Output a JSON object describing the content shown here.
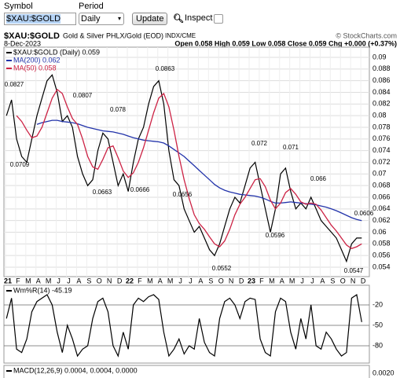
{
  "toolbar": {
    "symbol_label": "Symbol",
    "symbol_value": "$XAU:$GOLD",
    "period_label": "Period",
    "period_value": "Daily",
    "update": "Update",
    "inspect": "Inspect"
  },
  "header": {
    "symbol": "$XAU:$GOLD",
    "description": "Gold & Silver PHLX/Gold (EOD)",
    "exchange": "INDX/CME",
    "copyright": "© StockCharts.com",
    "date": "8-Dec-2023",
    "quote": "Open 0.058 High 0.059 Low 0.058 Close 0.059 Chg +0.000 (+0.37%)"
  },
  "chart_data": [
    {
      "type": "line",
      "x_labels": [
        "21",
        "F",
        "M",
        "A",
        "M",
        "J",
        "J",
        "A",
        "S",
        "O",
        "N",
        "D",
        "22",
        "F",
        "M",
        "A",
        "M",
        "J",
        "J",
        "A",
        "S",
        "O",
        "N",
        "D",
        "23",
        "F",
        "M",
        "A",
        "M",
        "J",
        "J",
        "A",
        "S",
        "O",
        "N",
        "D"
      ],
      "ylim": [
        0.053,
        0.0915
      ],
      "yticks": [
        0.054,
        0.056,
        0.058,
        0.06,
        0.062,
        0.064,
        0.066,
        0.068,
        0.07,
        0.072,
        0.074,
        0.076,
        0.078,
        0.08,
        0.082,
        0.084,
        0.086,
        0.088,
        0.09
      ],
      "grid": true,
      "series": [
        {
          "name": "$XAU:$GOLD (Daily) 0.059",
          "color": "#000000",
          "values": [
            0.08,
            0.0827,
            0.076,
            0.073,
            0.072,
            0.076,
            0.08,
            0.083,
            0.086,
            0.087,
            0.084,
            0.079,
            0.08,
            0.078,
            0.073,
            0.07,
            0.068,
            0.069,
            0.074,
            0.077,
            0.076,
            0.072,
            0.068,
            0.07,
            0.067,
            0.072,
            0.076,
            0.078,
            0.082,
            0.085,
            0.086,
            0.082,
            0.074,
            0.069,
            0.068,
            0.064,
            0.062,
            0.06,
            0.061,
            0.059,
            0.057,
            0.056,
            0.058,
            0.061,
            0.064,
            0.066,
            0.065,
            0.068,
            0.071,
            0.072,
            0.068,
            0.064,
            0.06,
            0.064,
            0.07,
            0.071,
            0.067,
            0.064,
            0.065,
            0.064,
            0.066,
            0.064,
            0.062,
            0.061,
            0.06,
            0.059,
            0.057,
            0.055,
            0.058,
            0.059,
            0.059
          ]
        },
        {
          "name": "MA(200) 0.062",
          "color": "#2233aa",
          "values": [
            null,
            null,
            null,
            null,
            null,
            null,
            0.0785,
            0.0788,
            0.079,
            0.0792,
            0.0792,
            0.079,
            0.0789,
            0.0788,
            0.0786,
            0.0783,
            0.078,
            0.0778,
            0.0776,
            0.0774,
            0.0773,
            0.0772,
            0.077,
            0.0768,
            0.0765,
            0.0762,
            0.076,
            0.0758,
            0.0757,
            0.0756,
            0.0755,
            0.0753,
            0.0748,
            0.0742,
            0.0736,
            0.073,
            0.0722,
            0.0714,
            0.0706,
            0.0698,
            0.069,
            0.0682,
            0.0676,
            0.0672,
            0.0669,
            0.0667,
            0.0665,
            0.0664,
            0.0663,
            0.0662,
            0.066,
            0.0657,
            0.0653,
            0.065,
            0.065,
            0.0651,
            0.0652,
            0.0651,
            0.065,
            0.0649,
            0.0648,
            0.0647,
            0.0645,
            0.0643,
            0.064,
            0.0637,
            0.0633,
            0.0629,
            0.0625,
            0.0622,
            0.062
          ]
        },
        {
          "name": "MA(50) 0.058",
          "color": "#cc2244",
          "values": [
            null,
            null,
            0.08,
            0.079,
            0.0775,
            0.0762,
            0.0765,
            0.078,
            0.0805,
            0.083,
            0.0845,
            0.0838,
            0.0815,
            0.0795,
            0.0785,
            0.076,
            0.073,
            0.0712,
            0.0708,
            0.0725,
            0.0745,
            0.0748,
            0.0728,
            0.0705,
            0.0694,
            0.0702,
            0.072,
            0.0745,
            0.0775,
            0.0805,
            0.083,
            0.0838,
            0.0815,
            0.0775,
            0.073,
            0.069,
            0.0658,
            0.063,
            0.0615,
            0.0605,
            0.0592,
            0.058,
            0.0575,
            0.0585,
            0.0605,
            0.063,
            0.0648,
            0.066,
            0.0675,
            0.069,
            0.0692,
            0.0678,
            0.0655,
            0.064,
            0.065,
            0.0668,
            0.0675,
            0.0665,
            0.0652,
            0.0648,
            0.065,
            0.0648,
            0.0638,
            0.0625,
            0.0612,
            0.0602,
            0.059,
            0.0578,
            0.0572,
            0.0575,
            0.058
          ]
        }
      ],
      "annotations": [
        0.0827,
        0.0807,
        0.078,
        0.0863,
        0.0709,
        0.0663,
        0.0666,
        0.0656,
        0.0552,
        0.072,
        0.071,
        0.066,
        0.0596,
        0.0606,
        0.0547
      ]
    },
    {
      "type": "line",
      "ylim": [
        -100,
        0
      ],
      "yticks": [
        -20,
        -50,
        -80
      ],
      "grid": true,
      "series": [
        {
          "name": "Wm%R(14) -45.19",
          "color": "#000000",
          "values": [
            -40,
            -10,
            -85,
            -90,
            -70,
            -30,
            -15,
            -10,
            -5,
            -20,
            -60,
            -90,
            -50,
            -70,
            -95,
            -85,
            -80,
            -40,
            -15,
            -10,
            -30,
            -80,
            -95,
            -60,
            -85,
            -20,
            -10,
            -15,
            -8,
            -5,
            -12,
            -60,
            -95,
            -85,
            -70,
            -92,
            -80,
            -85,
            -40,
            -75,
            -90,
            -95,
            -40,
            -15,
            -10,
            -20,
            -40,
            -15,
            -10,
            -12,
            -70,
            -90,
            -95,
            -30,
            -10,
            -15,
            -60,
            -85,
            -40,
            -70,
            -20,
            -80,
            -85,
            -60,
            -70,
            -85,
            -95,
            -90,
            -10,
            -5,
            -45.19
          ]
        }
      ]
    },
    {
      "type": "line",
      "ylim": [
        0.0018,
        0.0023
      ],
      "yticks": [
        {
          "value": 0.002,
          "label": "0.0020"
        }
      ],
      "series": [
        {
          "name": "MACD(12,26,9) 0.0004, 0.0004, 0.0000",
          "color": "#000000",
          "values": []
        }
      ]
    }
  ]
}
